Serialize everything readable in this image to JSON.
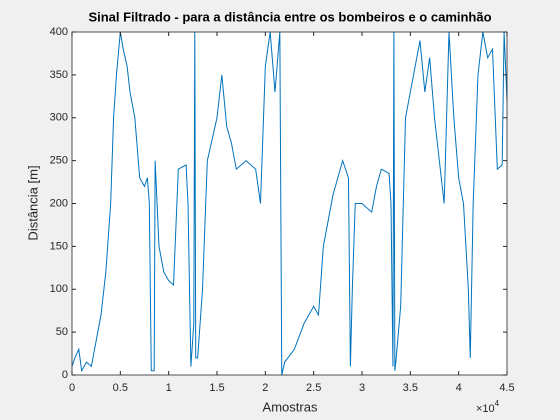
{
  "chart_data": {
    "type": "line",
    "title": "Sinal Filtrado - para a distância entre os bombeiros e o caminhão",
    "x_label": "Amostras",
    "y_label": "Distância [m]",
    "x_multiplier": {
      "base": "×10",
      "exponent": "4"
    },
    "x": [
      0,
      300,
      700,
      1000,
      1500,
      2000,
      2500,
      3000,
      3500,
      4000,
      4300,
      4600,
      5000,
      5300,
      5700,
      6000,
      6500,
      7000,
      7500,
      7800,
      8000,
      8200,
      8500,
      8600,
      9000,
      9500,
      10000,
      10500,
      11000,
      11800,
      12000,
      12300,
      12600,
      12700,
      12800,
      13000,
      13500,
      14000,
      15000,
      15500,
      16000,
      16500,
      17000,
      18000,
      19000,
      19500,
      20000,
      20500,
      21000,
      21500,
      21700,
      22000,
      23000,
      24000,
      25000,
      25500,
      26000,
      26500,
      27000,
      28000,
      28600,
      28800,
      29000,
      29300,
      30000,
      31000,
      31500,
      32000,
      32800,
      33000,
      33200,
      33300,
      33400,
      33500,
      34000,
      34500,
      35000,
      36000,
      36500,
      37000,
      37500,
      38000,
      38500,
      39000,
      39500,
      40000,
      40500,
      41000,
      41200,
      41500,
      42000,
      42500,
      43000,
      43500,
      44000,
      44500,
      44700,
      45000
    ],
    "series": [
      {
        "name": "Distância",
        "color": "#0072bd",
        "values": [
          10,
          20,
          30,
          5,
          15,
          10,
          40,
          70,
          120,
          200,
          300,
          350,
          400,
          380,
          360,
          330,
          300,
          230,
          220,
          230,
          200,
          5,
          5,
          250,
          150,
          120,
          110,
          105,
          240,
          245,
          200,
          10,
          60,
          400,
          20,
          20,
          100,
          250,
          300,
          350,
          290,
          270,
          240,
          250,
          240,
          200,
          360,
          400,
          330,
          400,
          0,
          15,
          30,
          60,
          80,
          70,
          150,
          180,
          210,
          250,
          230,
          10,
          100,
          200,
          200,
          190,
          220,
          240,
          235,
          200,
          10,
          400,
          5,
          15,
          80,
          300,
          330,
          390,
          330,
          370,
          300,
          250,
          200,
          400,
          300,
          230,
          200,
          100,
          20,
          200,
          350,
          400,
          370,
          380,
          240,
          245,
          400,
          320
        ]
      }
    ],
    "xlim": [
      0,
      45000
    ],
    "xticks": [
      0,
      {
        "value": 5000,
        "label": "0.5"
      },
      {
        "value": 10000,
        "label": "1"
      },
      {
        "value": 15000,
        "label": "1.5"
      },
      {
        "value": 20000,
        "label": "2"
      },
      {
        "value": 25000,
        "label": "2.5"
      },
      {
        "value": 30000,
        "label": "3"
      },
      {
        "value": 35000,
        "label": "3.5"
      },
      {
        "value": 40000,
        "label": "4"
      },
      {
        "value": 45000,
        "label": "4.5"
      }
    ],
    "ylim": [
      0,
      400
    ],
    "yticks": [
      0,
      50,
      100,
      150,
      200,
      250,
      300,
      350,
      400
    ],
    "grid": false
  }
}
